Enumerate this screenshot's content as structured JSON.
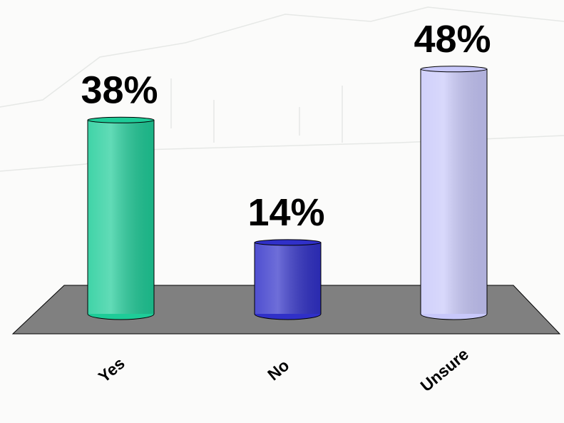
{
  "chart_data": {
    "type": "bar",
    "categories": [
      "Yes",
      "No",
      "Unsure"
    ],
    "values": [
      38,
      14,
      48
    ],
    "value_labels": [
      "38%",
      "14%",
      "48%"
    ],
    "colors": [
      "#1ecc98",
      "#3030c8",
      "#c8c8fa"
    ]
  }
}
